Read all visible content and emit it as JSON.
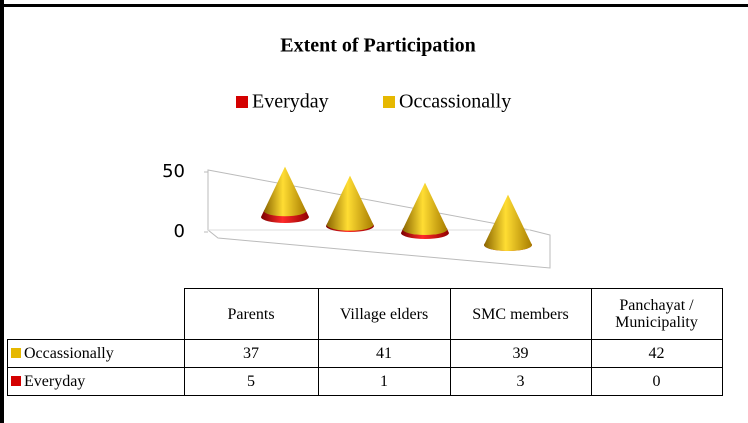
{
  "chart_data": {
    "type": "cone",
    "title": "Extent of Participation",
    "categories": [
      "Parents",
      "Village elders",
      "SMC members",
      "Panchayat / Municipality"
    ],
    "series": [
      {
        "name": "Everyday",
        "color": "#d40000",
        "values": [
          5,
          1,
          3,
          0
        ]
      },
      {
        "name": "Occassionally",
        "color": "#e6b800",
        "values": [
          37,
          41,
          39,
          42
        ]
      }
    ],
    "ylim": [
      0,
      50
    ],
    "yticks": [
      0,
      50
    ],
    "stacked": true
  }
}
